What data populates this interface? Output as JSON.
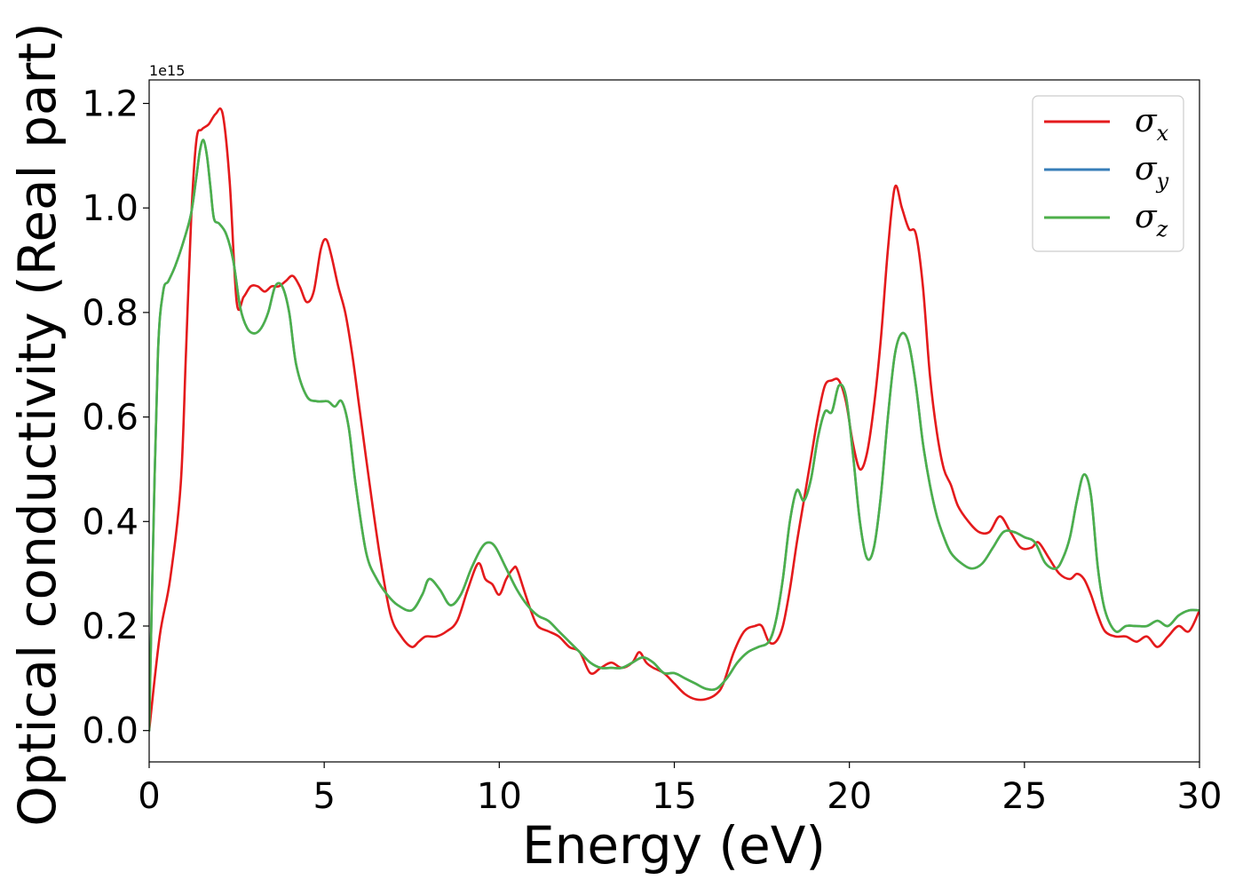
{
  "chart_data": {
    "type": "line",
    "title": "",
    "xlabel": "Energy (eV)",
    "ylabel": "Optical conductivity (Real part)",
    "offset_text": "1e15",
    "xlim": [
      0,
      30
    ],
    "ylim": [
      -0.06,
      1.245
    ],
    "y_scale_multiplier": 1000000000000000.0,
    "xticks": [
      0,
      5,
      10,
      15,
      20,
      25,
      30
    ],
    "xtick_labels": [
      "0",
      "5",
      "10",
      "15",
      "20",
      "25",
      "30"
    ],
    "yticks": [
      0.0,
      0.2,
      0.4,
      0.6,
      0.8,
      1.0,
      1.2
    ],
    "ytick_labels": [
      "0.0",
      "0.2",
      "0.4",
      "0.6",
      "0.8",
      "1.0",
      "1.2"
    ],
    "grid": false,
    "legend_position": "top-right",
    "series": [
      {
        "name": "σx",
        "symbol": "σ",
        "sub": "x",
        "color": "#e41a1c",
        "x": [
          0,
          0.3,
          0.6,
          0.9,
          1.05,
          1.2,
          1.35,
          1.5,
          1.7,
          1.9,
          2.1,
          2.3,
          2.5,
          2.7,
          2.9,
          3.1,
          3.3,
          3.5,
          3.7,
          3.9,
          4.1,
          4.3,
          4.5,
          4.7,
          4.9,
          5.05,
          5.2,
          5.4,
          5.6,
          5.8,
          6.0,
          6.3,
          6.6,
          6.9,
          7.2,
          7.5,
          7.7,
          7.9,
          8.2,
          8.5,
          8.8,
          9.1,
          9.4,
          9.6,
          9.8,
          10.0,
          10.2,
          10.4,
          10.5,
          10.7,
          10.9,
          11.1,
          11.4,
          11.7,
          12.0,
          12.3,
          12.6,
          12.9,
          13.2,
          13.5,
          13.8,
          14.0,
          14.2,
          14.4,
          14.7,
          15.0,
          15.3,
          15.6,
          15.9,
          16.2,
          16.4,
          16.7,
          17.0,
          17.3,
          17.5,
          17.7,
          17.9,
          18.1,
          18.3,
          18.5,
          18.7,
          18.9,
          19.1,
          19.3,
          19.5,
          19.7,
          19.9,
          20.1,
          20.3,
          20.5,
          20.7,
          20.9,
          21.1,
          21.3,
          21.5,
          21.7,
          21.9,
          22.1,
          22.3,
          22.5,
          22.7,
          22.9,
          23.1,
          23.4,
          23.7,
          24.0,
          24.3,
          24.6,
          24.9,
          25.2,
          25.4,
          25.7,
          26.0,
          26.3,
          26.5,
          26.7,
          26.9,
          27.1,
          27.3,
          27.6,
          27.9,
          28.2,
          28.5,
          28.8,
          29.1,
          29.4,
          29.7,
          30.0
        ],
        "values": [
          0.0,
          0.18,
          0.29,
          0.47,
          0.72,
          0.98,
          1.13,
          1.15,
          1.16,
          1.18,
          1.18,
          1.05,
          0.82,
          0.83,
          0.85,
          0.85,
          0.84,
          0.85,
          0.85,
          0.86,
          0.87,
          0.85,
          0.82,
          0.84,
          0.92,
          0.94,
          0.91,
          0.85,
          0.8,
          0.72,
          0.62,
          0.47,
          0.33,
          0.22,
          0.18,
          0.16,
          0.17,
          0.18,
          0.18,
          0.19,
          0.21,
          0.27,
          0.32,
          0.29,
          0.28,
          0.26,
          0.29,
          0.31,
          0.31,
          0.27,
          0.23,
          0.2,
          0.19,
          0.18,
          0.16,
          0.15,
          0.11,
          0.12,
          0.13,
          0.12,
          0.13,
          0.15,
          0.13,
          0.12,
          0.11,
          0.09,
          0.07,
          0.06,
          0.06,
          0.07,
          0.09,
          0.15,
          0.19,
          0.2,
          0.2,
          0.17,
          0.17,
          0.2,
          0.27,
          0.36,
          0.44,
          0.52,
          0.6,
          0.66,
          0.67,
          0.67,
          0.63,
          0.55,
          0.5,
          0.53,
          0.62,
          0.75,
          0.92,
          1.04,
          1.0,
          0.96,
          0.95,
          0.85,
          0.68,
          0.57,
          0.5,
          0.47,
          0.43,
          0.4,
          0.38,
          0.38,
          0.41,
          0.38,
          0.35,
          0.35,
          0.36,
          0.33,
          0.3,
          0.29,
          0.3,
          0.29,
          0.26,
          0.22,
          0.19,
          0.18,
          0.18,
          0.17,
          0.18,
          0.16,
          0.18,
          0.2,
          0.19,
          0.23
        ]
      },
      {
        "name": "σy",
        "symbol": "σ",
        "sub": "y",
        "color": "#377eb8",
        "x": [
          0,
          0.1,
          0.25,
          0.4,
          0.55,
          0.75,
          1.0,
          1.2,
          1.35,
          1.45,
          1.55,
          1.65,
          1.75,
          1.85,
          2.0,
          2.2,
          2.4,
          2.6,
          2.8,
          3.0,
          3.2,
          3.4,
          3.6,
          3.8,
          4.0,
          4.2,
          4.5,
          4.8,
          5.1,
          5.3,
          5.5,
          5.7,
          5.9,
          6.2,
          6.5,
          6.8,
          7.1,
          7.5,
          7.8,
          8.0,
          8.3,
          8.6,
          8.9,
          9.2,
          9.5,
          9.7,
          9.9,
          10.2,
          10.5,
          10.8,
          11.1,
          11.4,
          11.7,
          12.0,
          12.3,
          12.6,
          12.9,
          13.2,
          13.5,
          13.8,
          14.1,
          14.4,
          14.7,
          15.0,
          15.3,
          15.6,
          15.9,
          16.2,
          16.5,
          16.8,
          17.1,
          17.4,
          17.7,
          17.9,
          18.1,
          18.3,
          18.5,
          18.7,
          18.9,
          19.1,
          19.3,
          19.5,
          19.7,
          19.9,
          20.1,
          20.3,
          20.5,
          20.7,
          20.9,
          21.1,
          21.3,
          21.5,
          21.7,
          21.9,
          22.1,
          22.3,
          22.5,
          22.7,
          22.9,
          23.2,
          23.5,
          23.8,
          24.1,
          24.4,
          24.7,
          25.0,
          25.3,
          25.6,
          25.9,
          26.1,
          26.3,
          26.5,
          26.7,
          26.9,
          27.1,
          27.3,
          27.6,
          27.9,
          28.2,
          28.5,
          28.8,
          29.1,
          29.4,
          29.7,
          30.0
        ],
        "values": [
          0.0,
          0.32,
          0.72,
          0.84,
          0.86,
          0.89,
          0.94,
          0.99,
          1.06,
          1.11,
          1.13,
          1.1,
          1.04,
          0.98,
          0.97,
          0.95,
          0.9,
          0.81,
          0.77,
          0.76,
          0.77,
          0.8,
          0.85,
          0.85,
          0.8,
          0.7,
          0.64,
          0.63,
          0.63,
          0.62,
          0.63,
          0.58,
          0.47,
          0.34,
          0.29,
          0.26,
          0.24,
          0.23,
          0.26,
          0.29,
          0.27,
          0.24,
          0.26,
          0.31,
          0.35,
          0.36,
          0.35,
          0.31,
          0.27,
          0.24,
          0.22,
          0.21,
          0.19,
          0.17,
          0.15,
          0.13,
          0.12,
          0.12,
          0.12,
          0.13,
          0.14,
          0.13,
          0.11,
          0.11,
          0.1,
          0.09,
          0.08,
          0.08,
          0.1,
          0.13,
          0.15,
          0.16,
          0.17,
          0.21,
          0.29,
          0.4,
          0.46,
          0.44,
          0.48,
          0.56,
          0.61,
          0.61,
          0.66,
          0.64,
          0.53,
          0.4,
          0.33,
          0.35,
          0.45,
          0.6,
          0.72,
          0.76,
          0.74,
          0.66,
          0.55,
          0.47,
          0.41,
          0.37,
          0.34,
          0.32,
          0.31,
          0.32,
          0.35,
          0.38,
          0.38,
          0.37,
          0.36,
          0.32,
          0.31,
          0.33,
          0.37,
          0.44,
          0.49,
          0.45,
          0.31,
          0.23,
          0.19,
          0.2,
          0.2,
          0.2,
          0.21,
          0.2,
          0.22,
          0.23,
          0.23
        ]
      },
      {
        "name": "σz",
        "symbol": "σ",
        "sub": "z",
        "color": "#4daf4a",
        "x": [
          0,
          0.1,
          0.25,
          0.4,
          0.55,
          0.75,
          1.0,
          1.2,
          1.35,
          1.45,
          1.55,
          1.65,
          1.75,
          1.85,
          2.0,
          2.2,
          2.4,
          2.6,
          2.8,
          3.0,
          3.2,
          3.4,
          3.6,
          3.8,
          4.0,
          4.2,
          4.5,
          4.8,
          5.1,
          5.3,
          5.5,
          5.7,
          5.9,
          6.2,
          6.5,
          6.8,
          7.1,
          7.5,
          7.8,
          8.0,
          8.3,
          8.6,
          8.9,
          9.2,
          9.5,
          9.7,
          9.9,
          10.2,
          10.5,
          10.8,
          11.1,
          11.4,
          11.7,
          12.0,
          12.3,
          12.6,
          12.9,
          13.2,
          13.5,
          13.8,
          14.1,
          14.4,
          14.7,
          15.0,
          15.3,
          15.6,
          15.9,
          16.2,
          16.5,
          16.8,
          17.1,
          17.4,
          17.7,
          17.9,
          18.1,
          18.3,
          18.5,
          18.7,
          18.9,
          19.1,
          19.3,
          19.5,
          19.7,
          19.9,
          20.1,
          20.3,
          20.5,
          20.7,
          20.9,
          21.1,
          21.3,
          21.5,
          21.7,
          21.9,
          22.1,
          22.3,
          22.5,
          22.7,
          22.9,
          23.2,
          23.5,
          23.8,
          24.1,
          24.4,
          24.7,
          25.0,
          25.3,
          25.6,
          25.9,
          26.1,
          26.3,
          26.5,
          26.7,
          26.9,
          27.1,
          27.3,
          27.6,
          27.9,
          28.2,
          28.5,
          28.8,
          29.1,
          29.4,
          29.7,
          30.0
        ],
        "values": [
          0.0,
          0.32,
          0.72,
          0.84,
          0.86,
          0.89,
          0.94,
          0.99,
          1.06,
          1.11,
          1.13,
          1.1,
          1.04,
          0.98,
          0.97,
          0.95,
          0.9,
          0.81,
          0.77,
          0.76,
          0.77,
          0.8,
          0.85,
          0.85,
          0.8,
          0.7,
          0.64,
          0.63,
          0.63,
          0.62,
          0.63,
          0.58,
          0.47,
          0.34,
          0.29,
          0.26,
          0.24,
          0.23,
          0.26,
          0.29,
          0.27,
          0.24,
          0.26,
          0.31,
          0.35,
          0.36,
          0.35,
          0.31,
          0.27,
          0.24,
          0.22,
          0.21,
          0.19,
          0.17,
          0.15,
          0.13,
          0.12,
          0.12,
          0.12,
          0.13,
          0.14,
          0.13,
          0.11,
          0.11,
          0.1,
          0.09,
          0.08,
          0.08,
          0.1,
          0.13,
          0.15,
          0.16,
          0.17,
          0.21,
          0.29,
          0.4,
          0.46,
          0.44,
          0.48,
          0.56,
          0.61,
          0.61,
          0.66,
          0.64,
          0.53,
          0.4,
          0.33,
          0.35,
          0.45,
          0.6,
          0.72,
          0.76,
          0.74,
          0.66,
          0.55,
          0.47,
          0.41,
          0.37,
          0.34,
          0.32,
          0.31,
          0.32,
          0.35,
          0.38,
          0.38,
          0.37,
          0.36,
          0.32,
          0.31,
          0.33,
          0.37,
          0.44,
          0.49,
          0.45,
          0.31,
          0.23,
          0.19,
          0.2,
          0.2,
          0.2,
          0.21,
          0.2,
          0.22,
          0.23,
          0.23
        ]
      }
    ]
  }
}
